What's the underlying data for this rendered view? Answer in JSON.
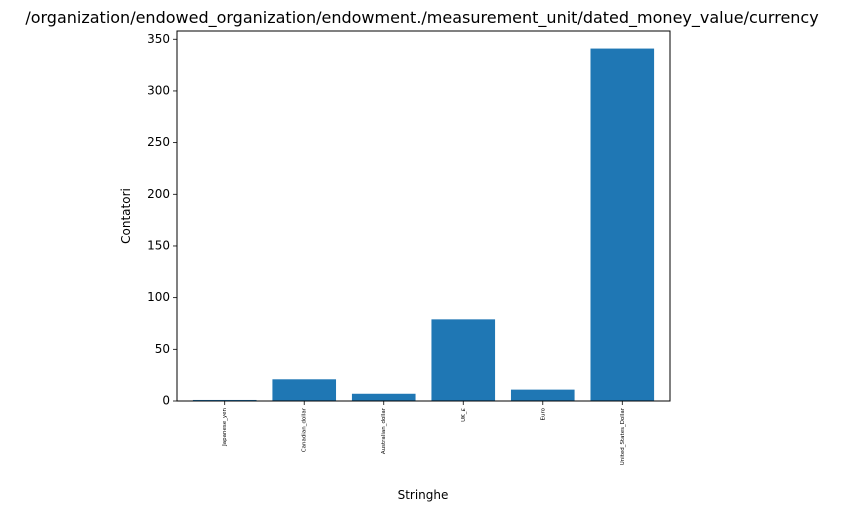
{
  "chart_data": {
    "type": "bar",
    "title": "/organization/endowed_organization/endowment./measurement_unit/dated_money_value/currency",
    "xlabel": "Stringhe",
    "ylabel": "Contatori",
    "categories": [
      "Japanese_yen",
      "Canadian_dollar",
      "Australian_dollar",
      "UK_£",
      "Euro",
      "United_States_Dollar"
    ],
    "values": [
      1,
      21,
      7,
      79,
      11,
      341
    ],
    "ylim": [
      0,
      358
    ],
    "yticks": [
      0,
      50,
      100,
      150,
      200,
      250,
      300,
      350
    ],
    "grid": false,
    "bar_color": "#1f77b4"
  }
}
